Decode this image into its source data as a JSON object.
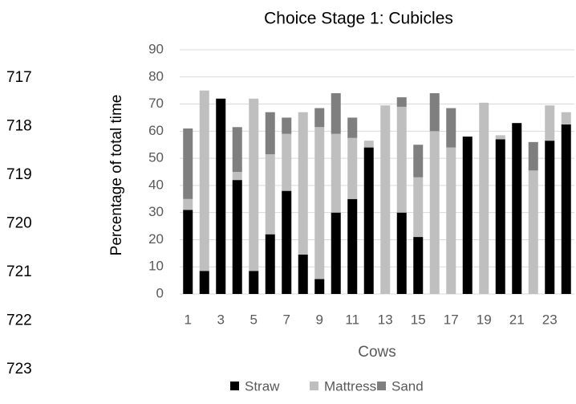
{
  "line_numbers": [
    "717",
    "718",
    "719",
    "720",
    "721",
    "722",
    "723"
  ],
  "chart_data": {
    "type": "stacked_bar",
    "title": "Choice Stage 1: Cubicles",
    "x_label": "Cows",
    "y_label": "Percentage of total time",
    "categories": [
      "1",
      null,
      "3",
      null,
      "5",
      null,
      "7",
      null,
      "9",
      null,
      "11",
      null,
      "13",
      null,
      "15",
      null,
      "17",
      null,
      "19",
      null,
      "21",
      null,
      "23",
      null
    ],
    "series": [
      {
        "name": "Straw",
        "color": "#000000",
        "values": [
          31,
          8.5,
          72,
          42,
          8.5,
          22,
          38,
          14.5,
          5.5,
          30,
          35,
          54,
          0,
          30,
          21,
          0,
          0,
          58,
          0,
          57,
          63,
          0,
          56.5,
          62.5
        ]
      },
      {
        "name": "Mattress",
        "color": "#bfbfbf",
        "values": [
          4,
          66.5,
          0,
          3,
          63.5,
          29.5,
          21,
          52.5,
          56,
          29,
          22.5,
          2.5,
          69.5,
          39,
          22,
          60,
          54,
          0,
          70.5,
          1.5,
          0,
          45.5,
          13,
          4.5
        ]
      },
      {
        "name": "Sand",
        "color": "#7f7f7f",
        "values": [
          26,
          0,
          0,
          16.5,
          0,
          15.5,
          6,
          0,
          7,
          15,
          7.5,
          0,
          0,
          3.5,
          12,
          14,
          14.5,
          0,
          0,
          0,
          0,
          10.5,
          0,
          0
        ]
      }
    ],
    "ylim": [
      0,
      90
    ],
    "yticks": [
      0,
      10,
      20,
      30,
      40,
      50,
      60,
      70,
      80,
      90
    ],
    "grid": true,
    "legend": "bottom"
  }
}
